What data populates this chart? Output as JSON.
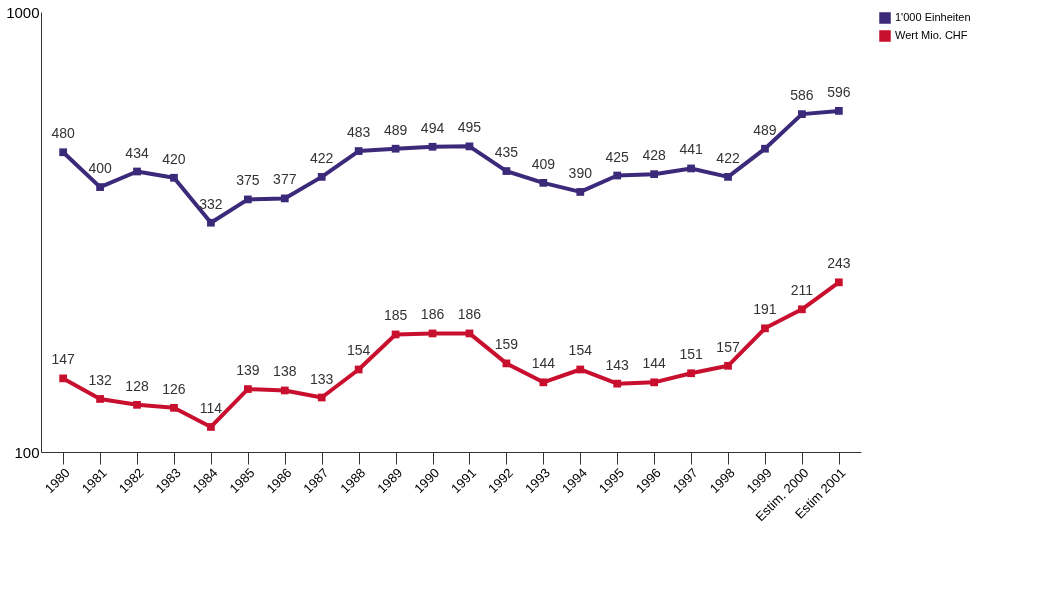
{
  "chart_data": {
    "type": "line",
    "categories": [
      "1980",
      "1981",
      "1982",
      "1983",
      "1984",
      "1985",
      "1986",
      "1987",
      "1988",
      "1989",
      "1990",
      "1991",
      "1992",
      "1993",
      "1994",
      "1995",
      "1996",
      "1997",
      "1998",
      "1999",
      "Estim. 2000",
      "Estim 2001"
    ],
    "series": [
      {
        "name": "1'000 Einheiten",
        "color": "#3b2a7a",
        "values": [
          480,
          400,
          434,
          420,
          332,
          375,
          377,
          422,
          483,
          489,
          494,
          495,
          435,
          409,
          390,
          425,
          428,
          441,
          422,
          489,
          586,
          596
        ]
      },
      {
        "name": "Wert Mio. CHF",
        "color": "#c8102e",
        "values": [
          147,
          132,
          128,
          126,
          114,
          139,
          138,
          133,
          154,
          185,
          186,
          186,
          159,
          144,
          154,
          143,
          144,
          151,
          157,
          191,
          211,
          243
        ]
      }
    ],
    "ylim": [
      100,
      1000
    ],
    "yticks": [
      100,
      1000
    ],
    "log": true,
    "grid": false,
    "legend": "right",
    "marker": "square",
    "line_style": "solid",
    "data_labels": true
  }
}
